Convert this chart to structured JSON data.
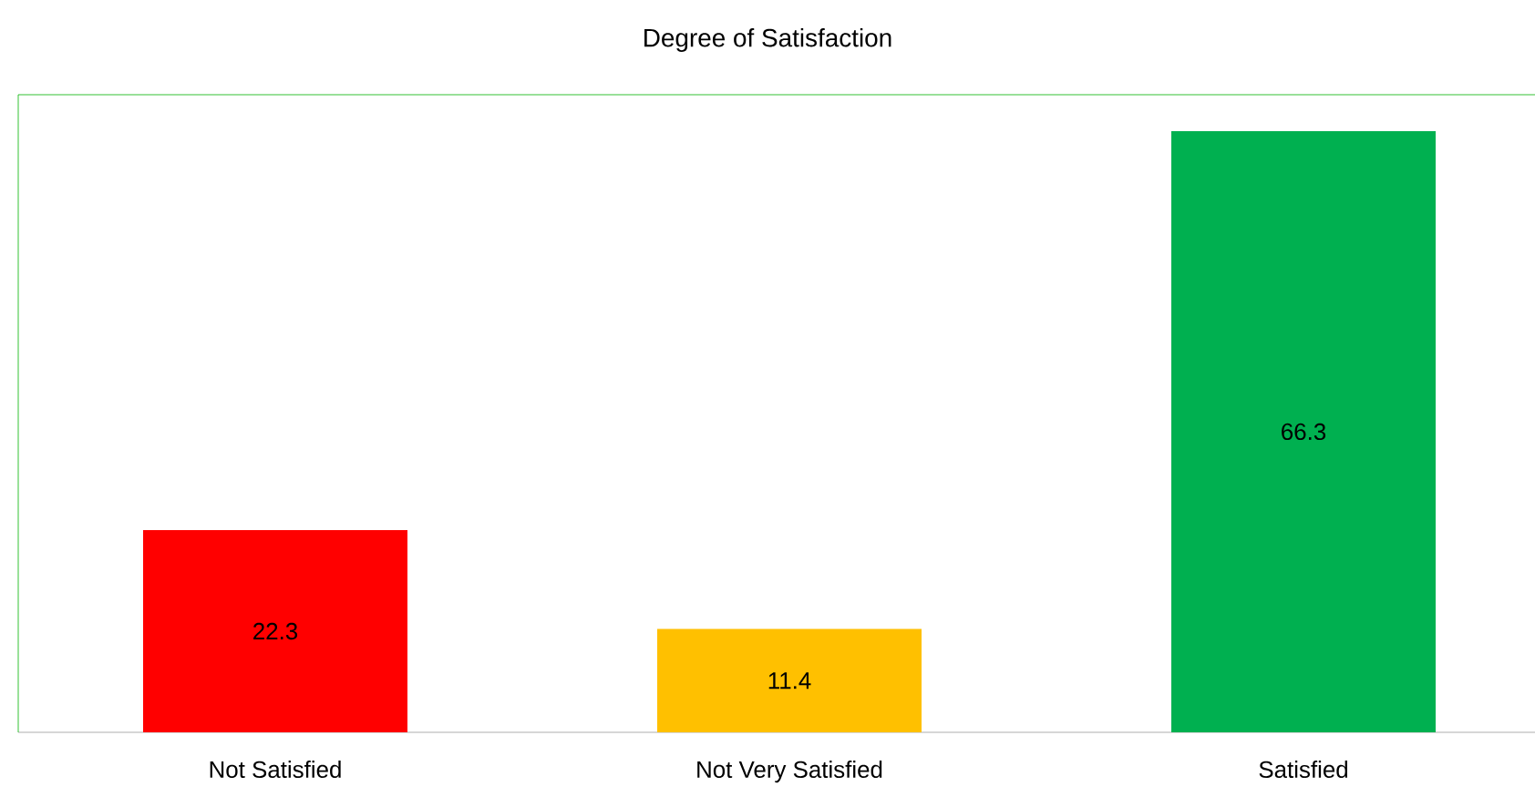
{
  "chart_data": {
    "type": "bar",
    "title": "Degree of Satisfaction",
    "categories": [
      "Not Satisfied",
      "Not Very Satisfied",
      "Satisfied"
    ],
    "values": [
      22.3,
      11.4,
      66.3
    ],
    "colors": [
      "#ff0000",
      "#ffc000",
      "#00b050"
    ],
    "data_labels": true
  }
}
